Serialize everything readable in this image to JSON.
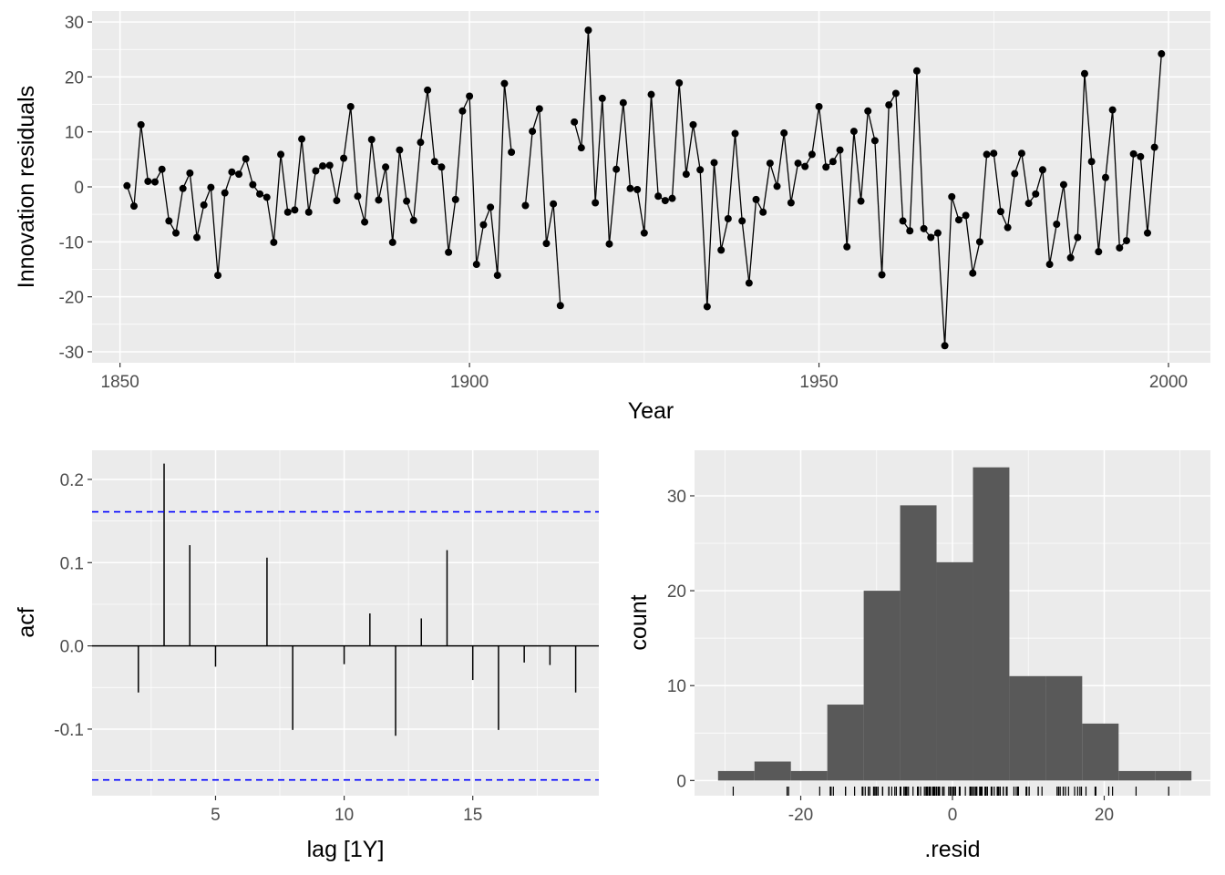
{
  "chart_data": [
    {
      "type": "line",
      "xlabel": "Year",
      "ylabel": "Innovation residuals",
      "xlim": [
        1846,
        2006
      ],
      "ylim": [
        -32,
        32
      ],
      "x_ticks": [
        1850,
        1900,
        1950,
        2000
      ],
      "y_ticks": [
        -30,
        -20,
        -10,
        0,
        10,
        20,
        30
      ],
      "grid": true,
      "points": [
        {
          "x": 1851,
          "y": 0.2
        },
        {
          "x": 1852,
          "y": -3.5
        },
        {
          "x": 1853,
          "y": 11.3
        },
        {
          "x": 1854,
          "y": 1.0
        },
        {
          "x": 1855,
          "y": 0.9
        },
        {
          "x": 1856,
          "y": 3.2
        },
        {
          "x": 1857,
          "y": -6.2
        },
        {
          "x": 1858,
          "y": -8.4
        },
        {
          "x": 1859,
          "y": -0.3
        },
        {
          "x": 1860,
          "y": 2.5
        },
        {
          "x": 1861,
          "y": -9.2
        },
        {
          "x": 1862,
          "y": -3.3
        },
        {
          "x": 1863,
          "y": -0.1
        },
        {
          "x": 1864,
          "y": -16.1
        },
        {
          "x": 1865,
          "y": -1.1
        },
        {
          "x": 1866,
          "y": 2.7
        },
        {
          "x": 1867,
          "y": 2.3
        },
        {
          "x": 1868,
          "y": 5.1
        },
        {
          "x": 1869,
          "y": 0.4
        },
        {
          "x": 1870,
          "y": -1.3
        },
        {
          "x": 1871,
          "y": -1.9
        },
        {
          "x": 1872,
          "y": -10.1
        },
        {
          "x": 1873,
          "y": 5.9
        },
        {
          "x": 1874,
          "y": -4.6
        },
        {
          "x": 1875,
          "y": -4.2
        },
        {
          "x": 1876,
          "y": 8.7
        },
        {
          "x": 1877,
          "y": -4.6
        },
        {
          "x": 1878,
          "y": 2.9
        },
        {
          "x": 1879,
          "y": 3.8
        },
        {
          "x": 1880,
          "y": 3.9
        },
        {
          "x": 1881,
          "y": -2.5
        },
        {
          "x": 1882,
          "y": 5.2
        },
        {
          "x": 1883,
          "y": 14.6
        },
        {
          "x": 1884,
          "y": -1.7
        },
        {
          "x": 1885,
          "y": -6.4
        },
        {
          "x": 1886,
          "y": 8.6
        },
        {
          "x": 1887,
          "y": -2.4
        },
        {
          "x": 1888,
          "y": 3.6
        },
        {
          "x": 1889,
          "y": -10.1
        },
        {
          "x": 1890,
          "y": 6.7
        },
        {
          "x": 1891,
          "y": -2.6
        },
        {
          "x": 1892,
          "y": -6.1
        },
        {
          "x": 1893,
          "y": 8.1
        },
        {
          "x": 1894,
          "y": 17.6
        },
        {
          "x": 1895,
          "y": 4.6
        },
        {
          "x": 1896,
          "y": 3.6
        },
        {
          "x": 1897,
          "y": -11.9
        },
        {
          "x": 1898,
          "y": -2.3
        },
        {
          "x": 1899,
          "y": 13.8
        },
        {
          "x": 1900,
          "y": 16.5
        },
        {
          "x": 1901,
          "y": -14.1
        },
        {
          "x": 1902,
          "y": -6.9
        },
        {
          "x": 1903,
          "y": -3.7
        },
        {
          "x": 1904,
          "y": -16.1
        },
        {
          "x": 1905,
          "y": 18.8
        },
        {
          "x": 1906,
          "y": 6.3
        },
        {
          "x": 1908,
          "y": -3.4
        },
        {
          "x": 1909,
          "y": 10.1
        },
        {
          "x": 1910,
          "y": 14.2
        },
        {
          "x": 1911,
          "y": -10.3
        },
        {
          "x": 1912,
          "y": -3.1
        },
        {
          "x": 1913,
          "y": -21.6
        },
        {
          "x": 1915,
          "y": 11.8
        },
        {
          "x": 1916,
          "y": 7.1
        },
        {
          "x": 1917,
          "y": 28.5
        },
        {
          "x": 1918,
          "y": -2.9
        },
        {
          "x": 1919,
          "y": 16.1
        },
        {
          "x": 1920,
          "y": -10.4
        },
        {
          "x": 1921,
          "y": 3.2
        },
        {
          "x": 1922,
          "y": 15.3
        },
        {
          "x": 1923,
          "y": -0.3
        },
        {
          "x": 1924,
          "y": -0.5
        },
        {
          "x": 1925,
          "y": -8.4
        },
        {
          "x": 1926,
          "y": 16.8
        },
        {
          "x": 1927,
          "y": -1.7
        },
        {
          "x": 1928,
          "y": -2.5
        },
        {
          "x": 1929,
          "y": -2.1
        },
        {
          "x": 1930,
          "y": 18.9
        },
        {
          "x": 1931,
          "y": 2.3
        },
        {
          "x": 1932,
          "y": 11.3
        },
        {
          "x": 1933,
          "y": 3.1
        },
        {
          "x": 1934,
          "y": -21.8
        },
        {
          "x": 1935,
          "y": 4.4
        },
        {
          "x": 1936,
          "y": -11.5
        },
        {
          "x": 1937,
          "y": -5.8
        },
        {
          "x": 1938,
          "y": 9.7
        },
        {
          "x": 1939,
          "y": -6.2
        },
        {
          "x": 1940,
          "y": -17.5
        },
        {
          "x": 1941,
          "y": -2.3
        },
        {
          "x": 1942,
          "y": -4.6
        },
        {
          "x": 1943,
          "y": 4.3
        },
        {
          "x": 1944,
          "y": 0.1
        },
        {
          "x": 1945,
          "y": 9.8
        },
        {
          "x": 1946,
          "y": -2.9
        },
        {
          "x": 1947,
          "y": 4.3
        },
        {
          "x": 1948,
          "y": 3.7
        },
        {
          "x": 1949,
          "y": 5.9
        },
        {
          "x": 1950,
          "y": 14.6
        },
        {
          "x": 1951,
          "y": 3.6
        },
        {
          "x": 1952,
          "y": 4.6
        },
        {
          "x": 1953,
          "y": 6.7
        },
        {
          "x": 1954,
          "y": -10.9
        },
        {
          "x": 1955,
          "y": 10.1
        },
        {
          "x": 1956,
          "y": -2.6
        },
        {
          "x": 1957,
          "y": 13.8
        },
        {
          "x": 1958,
          "y": 8.4
        },
        {
          "x": 1959,
          "y": -16.0
        },
        {
          "x": 1960,
          "y": 14.9
        },
        {
          "x": 1961,
          "y": 17.0
        },
        {
          "x": 1962,
          "y": -6.2
        },
        {
          "x": 1963,
          "y": -8.0
        },
        {
          "x": 1964,
          "y": 21.1
        },
        {
          "x": 1965,
          "y": -7.6
        },
        {
          "x": 1966,
          "y": -9.2
        },
        {
          "x": 1967,
          "y": -8.4
        },
        {
          "x": 1968,
          "y": -28.9
        },
        {
          "x": 1969,
          "y": -1.8
        },
        {
          "x": 1970,
          "y": -6.0
        },
        {
          "x": 1971,
          "y": -5.2
        },
        {
          "x": 1972,
          "y": -15.7
        },
        {
          "x": 1973,
          "y": -10.0
        },
        {
          "x": 1974,
          "y": 5.9
        },
        {
          "x": 1975,
          "y": 6.1
        },
        {
          "x": 1976,
          "y": -4.5
        },
        {
          "x": 1977,
          "y": -7.4
        },
        {
          "x": 1978,
          "y": 2.4
        },
        {
          "x": 1979,
          "y": 6.1
        },
        {
          "x": 1980,
          "y": -3.0
        },
        {
          "x": 1981,
          "y": -1.3
        },
        {
          "x": 1982,
          "y": 3.1
        },
        {
          "x": 1983,
          "y": -14.1
        },
        {
          "x": 1984,
          "y": -6.8
        },
        {
          "x": 1985,
          "y": 0.4
        },
        {
          "x": 1986,
          "y": -12.9
        },
        {
          "x": 1987,
          "y": -9.2
        },
        {
          "x": 1988,
          "y": 20.6
        },
        {
          "x": 1989,
          "y": 4.6
        },
        {
          "x": 1990,
          "y": -11.8
        },
        {
          "x": 1991,
          "y": 1.7
        },
        {
          "x": 1992,
          "y": 14.0
        },
        {
          "x": 1993,
          "y": -11.1
        },
        {
          "x": 1994,
          "y": -9.8
        },
        {
          "x": 1995,
          "y": 6.0
        },
        {
          "x": 1996,
          "y": 5.5
        },
        {
          "x": 1997,
          "y": -8.4
        },
        {
          "x": 1998,
          "y": 7.2
        },
        {
          "x": 1999,
          "y": 24.2
        }
      ]
    },
    {
      "type": "bar",
      "xlabel": "lag [1Y]",
      "ylabel": "acf",
      "xlim": [
        0.2,
        19.9
      ],
      "ylim": [
        -0.18,
        0.235
      ],
      "x_ticks": [
        5,
        10,
        15
      ],
      "y_ticks": [
        -0.1,
        0.0,
        0.1,
        0.2
      ],
      "y_tick_labels": [
        "-0.1",
        "0.0",
        "0.1",
        "0.2"
      ],
      "confidence_bound": 0.161,
      "confidence_color": "#0000ff",
      "lags": [
        2,
        3,
        4,
        5,
        7,
        8,
        10,
        11,
        12,
        13,
        14,
        15,
        16,
        17,
        18,
        19
      ],
      "values": [
        -0.056,
        0.219,
        0.121,
        -0.025,
        0.106,
        -0.101,
        -0.022,
        0.039,
        -0.108,
        0.033,
        0.115,
        -0.041,
        -0.101,
        -0.02,
        -0.023,
        -0.056
      ]
    },
    {
      "type": "histogram",
      "xlabel": ".resid",
      "ylabel": "count",
      "xlim": [
        -34,
        34
      ],
      "ylim": [
        -1.6,
        34.8
      ],
      "x_ticks": [
        -20,
        0,
        20
      ],
      "y_ticks": [
        0,
        10,
        20,
        30
      ],
      "bin_width": 4.8,
      "bin_edges": [
        -30.9,
        -26.1,
        -21.3,
        -16.5,
        -11.7,
        -6.9,
        -2.1,
        2.7,
        7.5,
        12.3,
        17.1,
        21.9,
        26.7,
        31.5
      ],
      "counts": [
        1,
        2,
        1,
        8,
        20,
        29,
        23,
        33,
        11,
        11,
        6,
        1,
        1
      ],
      "bar_color": "#595959",
      "rug": true
    }
  ]
}
